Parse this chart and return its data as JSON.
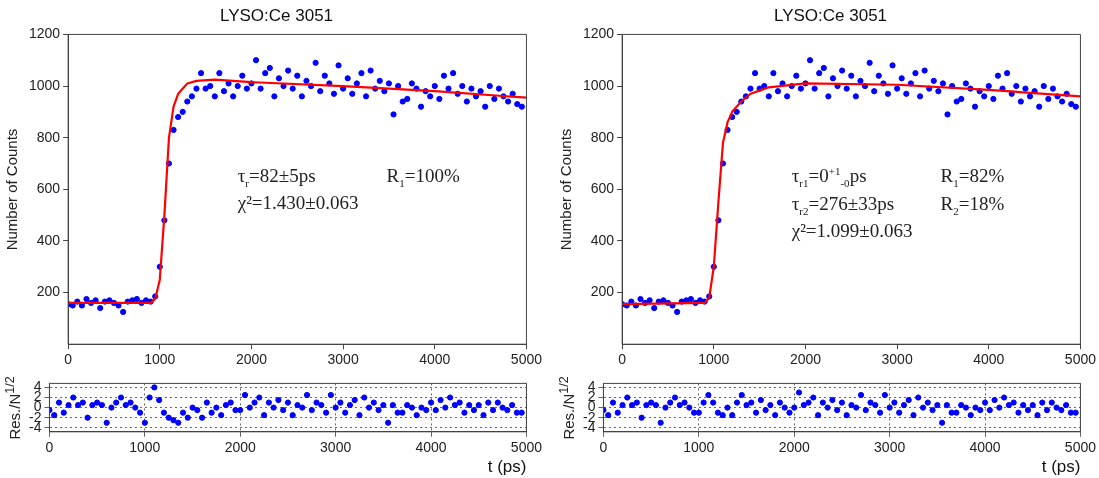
{
  "chart_data": [
    {
      "type": "scatter",
      "title": "LYSO:Ce 3051",
      "ylabel": "Number of Counts",
      "xlim": [
        0,
        5000
      ],
      "ylim": [
        0,
        1200
      ],
      "xticks": [
        0,
        1000,
        2000,
        3000,
        4000,
        5000
      ],
      "yticks": [
        200,
        400,
        600,
        800,
        1000,
        1200
      ],
      "grid": false,
      "legend": false,
      "marker": "circle",
      "annotations": [
        "τ$_{r}$=82±5ps",
        "R$_{1}$=100%",
        "χ²=1.430±0.063"
      ],
      "x": [
        0,
        50,
        100,
        150,
        200,
        250,
        300,
        350,
        400,
        450,
        500,
        550,
        600,
        650,
        700,
        750,
        800,
        850,
        900,
        950,
        1000,
        1050,
        1100,
        1150,
        1200,
        1250,
        1300,
        1350,
        1400,
        1450,
        1500,
        1550,
        1600,
        1650,
        1700,
        1750,
        1800,
        1850,
        1900,
        1950,
        2000,
        2050,
        2100,
        2150,
        2200,
        2250,
        2300,
        2350,
        2400,
        2450,
        2500,
        2550,
        2600,
        2650,
        2700,
        2750,
        2800,
        2850,
        2900,
        2950,
        3000,
        3050,
        3100,
        3150,
        3200,
        3250,
        3300,
        3350,
        3400,
        3450,
        3500,
        3550,
        3600,
        3650,
        3700,
        3750,
        3800,
        3850,
        3900,
        3950,
        4000,
        4050,
        4100,
        4150,
        4200,
        4250,
        4300,
        4350,
        4400,
        4450,
        4500,
        4550,
        4600,
        4650,
        4700,
        4750,
        4800,
        4850,
        4900,
        4950
      ],
      "series": [
        {
          "color": "#0000ff",
          "values": [
            155,
            150,
            165,
            150,
            175,
            160,
            170,
            140,
            165,
            170,
            160,
            150,
            125,
            165,
            170,
            175,
            160,
            170,
            165,
            185,
            300,
            480,
            700,
            830,
            880,
            900,
            940,
            960,
            990,
            1050,
            990,
            1000,
            960,
            1050,
            980,
            1010,
            960,
            1000,
            1040,
            990,
            1010,
            1100,
            990,
            1050,
            1070,
            960,
            1030,
            1000,
            1060,
            990,
            1040,
            960,
            1020,
            1000,
            1090,
            980,
            1040,
            1010,
            970,
            1080,
            990,
            1030,
            970,
            1010,
            1050,
            960,
            1060,
            990,
            1020,
            980,
            1010,
            890,
            1000,
            940,
            950,
            1010,
            990,
            920,
            980,
            960,
            1000,
            950,
            1040,
            990,
            1050,
            970,
            1000,
            940,
            990,
            960,
            980,
            920,
            1000,
            950,
            990,
            960,
            940,
            970,
            930,
            920
          ]
        },
        {
          "type": "line",
          "color": "#ff0000",
          "marker": "none",
          "x": [
            0,
            900,
            950,
            1000,
            1050,
            1100,
            1150,
            1200,
            1300,
            1400,
            1600,
            2000,
            3000,
            4000,
            5000
          ],
          "values": [
            160,
            160,
            175,
            250,
            500,
            800,
            920,
            970,
            1010,
            1020,
            1025,
            1015,
            1000,
            980,
            955
          ]
        }
      ]
    },
    {
      "type": "scatter",
      "title": "LYSO:Ce 3051",
      "ylabel": "Number of Counts",
      "xlim": [
        0,
        5000
      ],
      "ylim": [
        0,
        1200
      ],
      "xticks": [
        0,
        1000,
        2000,
        3000,
        4000,
        5000
      ],
      "yticks": [
        200,
        400,
        600,
        800,
        1000,
        1200
      ],
      "grid": false,
      "legend": false,
      "marker": "circle",
      "annotations": [
        "τ$_{r1}$=0$^{+1}$$_{-0}$ps",
        "R$_{1}$=82%",
        "τ$_{r2}$=276±33ps",
        "R$_{2}$=18%",
        "χ²=1.099±0.063"
      ],
      "x": [
        0,
        50,
        100,
        150,
        200,
        250,
        300,
        350,
        400,
        450,
        500,
        550,
        600,
        650,
        700,
        750,
        800,
        850,
        900,
        950,
        1000,
        1050,
        1100,
        1150,
        1200,
        1250,
        1300,
        1350,
        1400,
        1450,
        1500,
        1550,
        1600,
        1650,
        1700,
        1750,
        1800,
        1850,
        1900,
        1950,
        2000,
        2050,
        2100,
        2150,
        2200,
        2250,
        2300,
        2350,
        2400,
        2450,
        2500,
        2550,
        2600,
        2650,
        2700,
        2750,
        2800,
        2850,
        2900,
        2950,
        3000,
        3050,
        3100,
        3150,
        3200,
        3250,
        3300,
        3350,
        3400,
        3450,
        3500,
        3550,
        3600,
        3650,
        3700,
        3750,
        3800,
        3850,
        3900,
        3950,
        4000,
        4050,
        4100,
        4150,
        4200,
        4250,
        4300,
        4350,
        4400,
        4450,
        4500,
        4550,
        4600,
        4650,
        4700,
        4750,
        4800,
        4850,
        4900,
        4950
      ],
      "series": [
        {
          "color": "#0000ff",
          "values": [
            155,
            150,
            165,
            150,
            175,
            160,
            170,
            140,
            165,
            170,
            160,
            150,
            125,
            165,
            170,
            175,
            160,
            170,
            165,
            185,
            300,
            480,
            700,
            830,
            880,
            900,
            940,
            960,
            990,
            1050,
            990,
            1000,
            960,
            1050,
            980,
            1010,
            960,
            1000,
            1040,
            990,
            1010,
            1100,
            990,
            1050,
            1070,
            960,
            1030,
            1000,
            1060,
            990,
            1040,
            960,
            1020,
            1000,
            1090,
            980,
            1040,
            1010,
            970,
            1080,
            990,
            1030,
            970,
            1010,
            1050,
            960,
            1060,
            990,
            1020,
            980,
            1010,
            890,
            1000,
            940,
            950,
            1010,
            990,
            920,
            980,
            960,
            1000,
            950,
            1040,
            990,
            1050,
            970,
            1000,
            940,
            990,
            960,
            980,
            920,
            1000,
            950,
            990,
            960,
            940,
            970,
            930,
            920
          ]
        },
        {
          "type": "line",
          "color": "#ff0000",
          "marker": "none",
          "x": [
            0,
            900,
            950,
            1000,
            1050,
            1100,
            1150,
            1200,
            1300,
            1400,
            1600,
            2000,
            3000,
            4000,
            5000
          ],
          "values": [
            155,
            160,
            180,
            300,
            550,
            780,
            860,
            900,
            940,
            970,
            995,
            1010,
            1005,
            985,
            960
          ]
        }
      ]
    },
    {
      "type": "scatter",
      "xlabel": "t (ps)",
      "ylabel": "Res./N$^{1/2}$",
      "xlim": [
        0,
        5000
      ],
      "ylim": [
        -4.8,
        4.8
      ],
      "xticks": [
        0,
        1000,
        2000,
        3000,
        4000,
        5000
      ],
      "yticks": [
        -4,
        -2,
        0,
        2,
        4
      ],
      "grid": true,
      "legend": false,
      "marker": "circle",
      "x": [
        0,
        50,
        100,
        150,
        200,
        250,
        300,
        350,
        400,
        450,
        500,
        550,
        600,
        650,
        700,
        750,
        800,
        850,
        900,
        950,
        1000,
        1050,
        1100,
        1150,
        1200,
        1250,
        1300,
        1350,
        1400,
        1450,
        1500,
        1550,
        1600,
        1650,
        1700,
        1750,
        1800,
        1850,
        1900,
        1950,
        2000,
        2050,
        2100,
        2150,
        2200,
        2250,
        2300,
        2350,
        2400,
        2450,
        2500,
        2550,
        2600,
        2650,
        2700,
        2750,
        2800,
        2850,
        2900,
        2950,
        3000,
        3050,
        3100,
        3150,
        3200,
        3250,
        3300,
        3350,
        3400,
        3450,
        3500,
        3550,
        3600,
        3650,
        3700,
        3750,
        3800,
        3850,
        3900,
        3950,
        4000,
        4050,
        4100,
        4150,
        4200,
        4250,
        4300,
        4350,
        4400,
        4450,
        4500,
        4550,
        4600,
        4650,
        4700,
        4750,
        4800,
        4850,
        4900,
        4950
      ],
      "series": [
        {
          "color": "#0000ff",
          "values": [
            -0.5,
            -1.5,
            1,
            -1,
            0.5,
            2,
            0.5,
            1,
            -2,
            0.5,
            1,
            0.5,
            -3,
            0,
            1,
            2,
            0.5,
            1,
            0,
            -1,
            -3,
            2,
            4,
            1.5,
            -1,
            -2,
            -2.5,
            -3,
            -1,
            -2,
            0,
            -0.5,
            -2,
            1,
            -1,
            0,
            -1.5,
            0.5,
            1,
            -0.5,
            -0.5,
            2.5,
            0,
            1,
            2,
            -1.5,
            1,
            0,
            1.5,
            -0.5,
            1,
            -1.5,
            0.5,
            0,
            2.5,
            -0.5,
            1,
            0.5,
            -1,
            2.5,
            0,
            1,
            -1,
            0.5,
            1.5,
            -1.5,
            2,
            0,
            1,
            -0.5,
            0.5,
            -3,
            0.5,
            -1,
            -1,
            0.5,
            0,
            -1.5,
            0,
            -0.5,
            1,
            -0.5,
            1.5,
            0,
            2,
            0.5,
            1,
            -1,
            0.5,
            -0.5,
            0.5,
            -1.5,
            1,
            -0.5,
            1,
            0,
            -0.5,
            0.5,
            -1,
            -1
          ]
        }
      ]
    },
    {
      "type": "scatter",
      "xlabel": "t (ps)",
      "ylabel": "Res./N$^{1/2}$",
      "xlim": [
        0,
        5000
      ],
      "ylim": [
        -4.8,
        4.8
      ],
      "xticks": [
        0,
        1000,
        2000,
        3000,
        4000,
        5000
      ],
      "yticks": [
        -4,
        -2,
        0,
        2,
        4
      ],
      "grid": true,
      "legend": false,
      "marker": "circle",
      "x": [
        0,
        50,
        100,
        150,
        200,
        250,
        300,
        350,
        400,
        450,
        500,
        550,
        600,
        650,
        700,
        750,
        800,
        850,
        900,
        950,
        1000,
        1050,
        1100,
        1150,
        1200,
        1250,
        1300,
        1350,
        1400,
        1450,
        1500,
        1550,
        1600,
        1650,
        1700,
        1750,
        1800,
        1850,
        1900,
        1950,
        2000,
        2050,
        2100,
        2150,
        2200,
        2250,
        2300,
        2350,
        2400,
        2450,
        2500,
        2550,
        2600,
        2650,
        2700,
        2750,
        2800,
        2850,
        2900,
        2950,
        3000,
        3050,
        3100,
        3150,
        3200,
        3250,
        3300,
        3350,
        3400,
        3450,
        3500,
        3550,
        3600,
        3650,
        3700,
        3750,
        3800,
        3850,
        3900,
        3950,
        4000,
        4050,
        4100,
        4150,
        4200,
        4250,
        4300,
        4350,
        4400,
        4450,
        4500,
        4550,
        4600,
        4650,
        4700,
        4750,
        4800,
        4850,
        4900,
        4950
      ],
      "series": [
        {
          "color": "#0000ff",
          "values": [
            -0.5,
            -1.5,
            1,
            -1,
            0.5,
            2,
            0.5,
            1,
            -2,
            0.5,
            1,
            0.5,
            -3,
            0,
            1,
            2,
            0.5,
            1,
            0,
            -1,
            -1,
            1,
            2.5,
            1,
            -1,
            -1.5,
            0,
            -1.5,
            1,
            2.5,
            0.5,
            1,
            -1,
            1.5,
            -0.5,
            0.5,
            -1.5,
            1,
            0,
            -1,
            0,
            3,
            0.5,
            1,
            2,
            -1.5,
            1,
            0,
            1.5,
            -0.5,
            1,
            -1.5,
            0.5,
            0,
            2.5,
            -0.5,
            1,
            0.5,
            -1,
            2.5,
            0,
            1,
            -1,
            0.5,
            1.5,
            -1.5,
            2,
            0,
            1,
            -0.5,
            0.5,
            -3,
            0.5,
            -1,
            -1,
            0.5,
            0,
            -1.5,
            0,
            -0.5,
            1,
            -0.5,
            1.5,
            0,
            2,
            0.5,
            1,
            -1,
            0.5,
            -0.5,
            0.5,
            -1.5,
            1,
            -0.5,
            1,
            0,
            -0.5,
            0.5,
            -1,
            -1
          ]
        }
      ]
    }
  ]
}
